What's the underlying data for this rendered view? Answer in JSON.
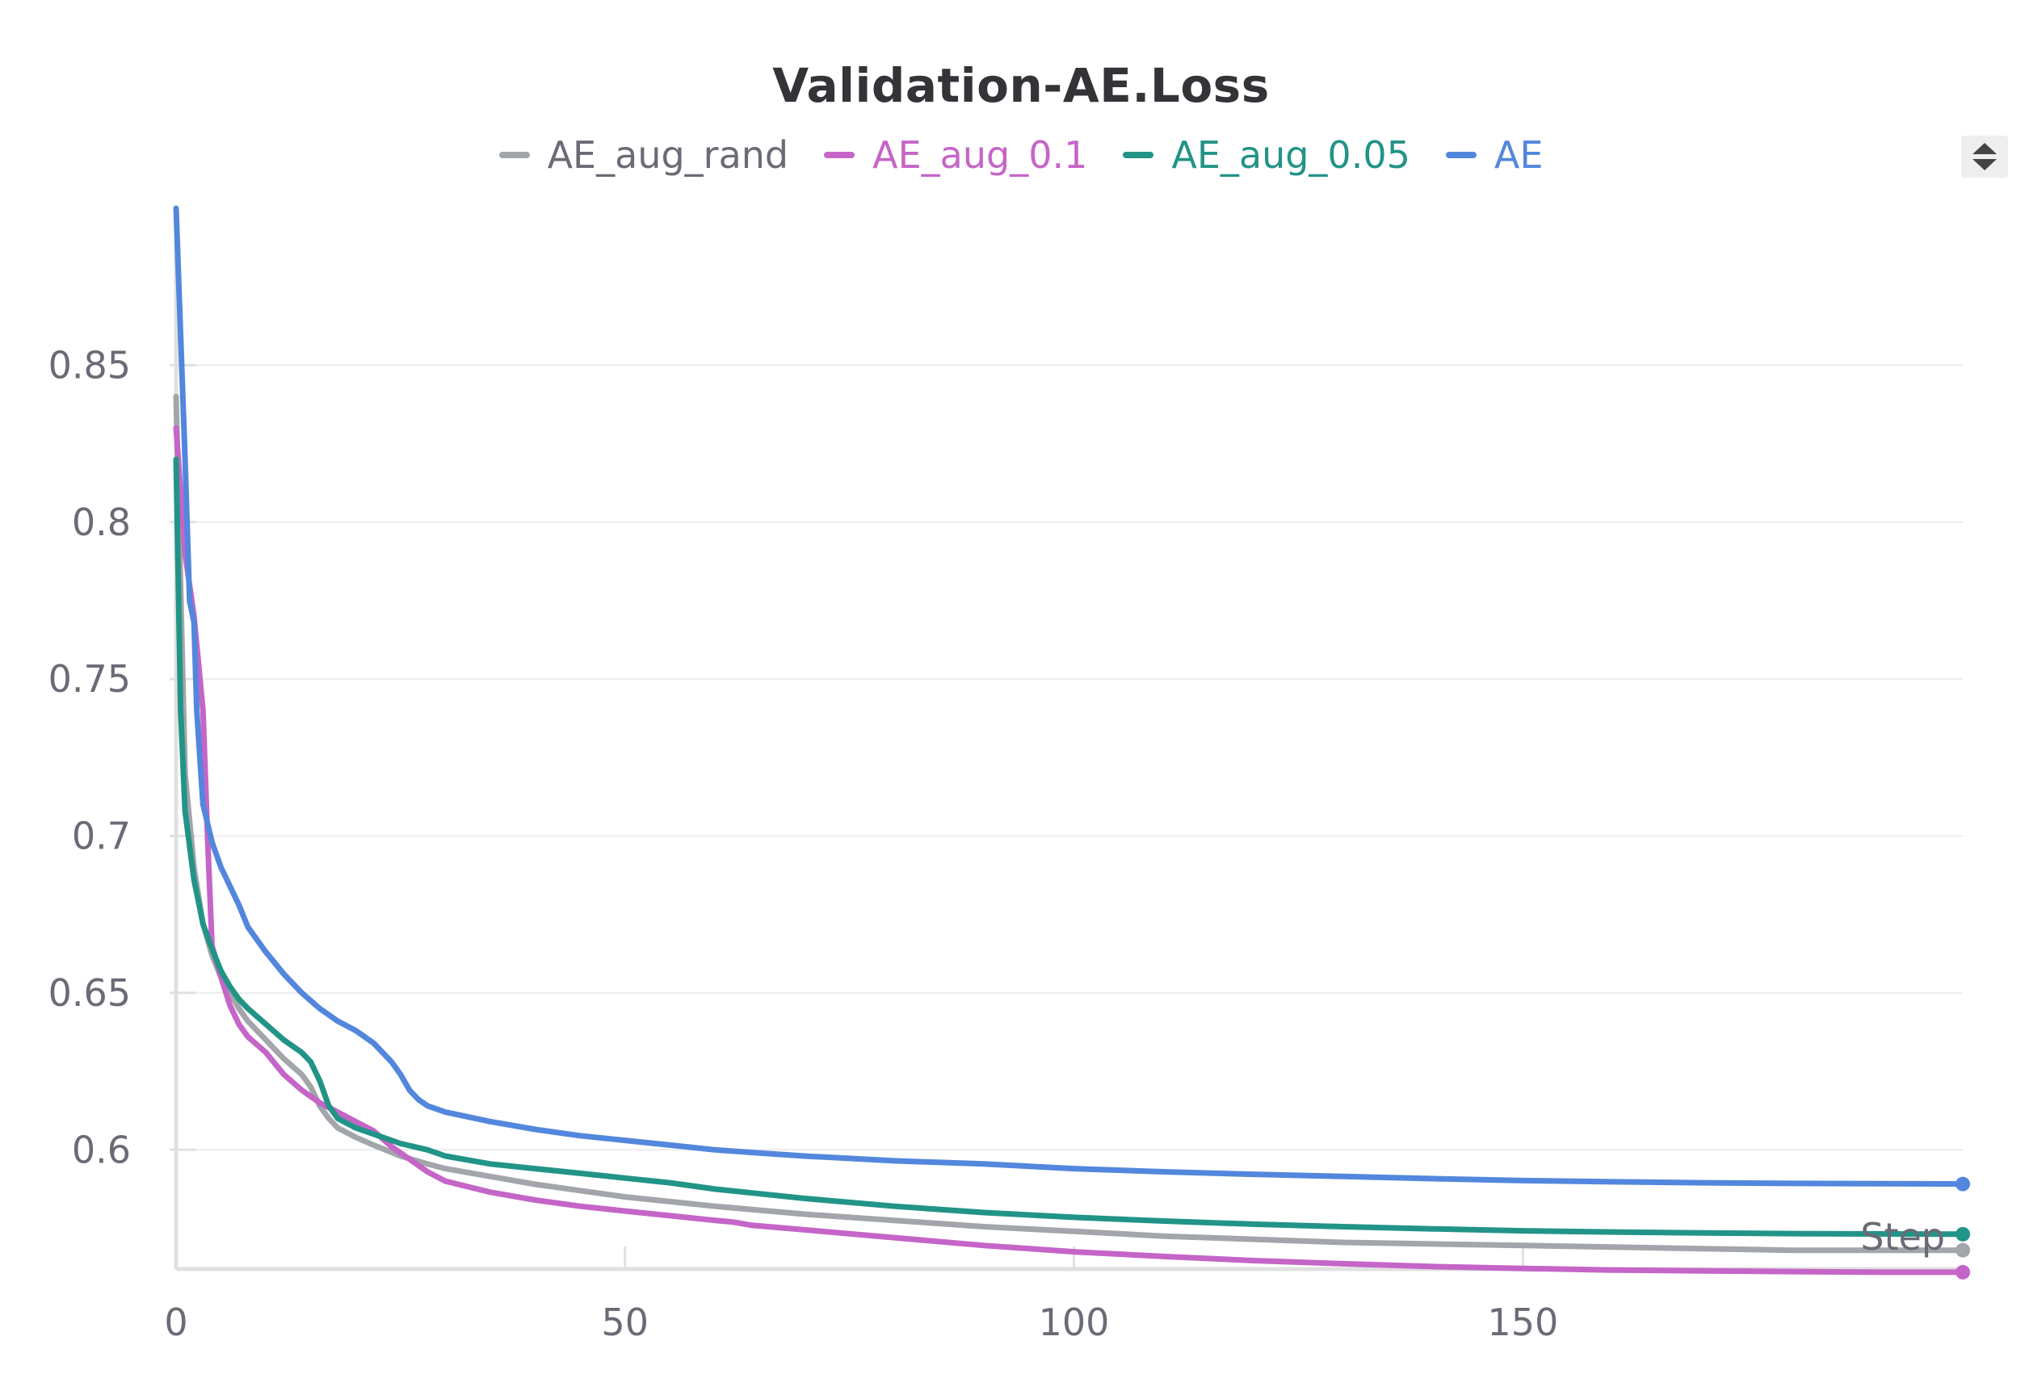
{
  "chart_data": {
    "type": "line",
    "title": "Validation-AE.Loss",
    "xlabel": "Step",
    "ylabel": "",
    "xlim": [
      0,
      199
    ],
    "ylim": [
      0.562,
      0.9
    ],
    "x_ticks": [
      0,
      50,
      100,
      150
    ],
    "y_ticks": [
      0.6,
      0.65,
      0.7,
      0.75,
      0.8,
      0.85
    ],
    "grid": "horizontal",
    "legend_position": "top-center",
    "series": [
      {
        "name": "AE_aug_rand",
        "color": "#a2a5a9",
        "points": [
          [
            0,
            0.84
          ],
          [
            1,
            0.72
          ],
          [
            2,
            0.69
          ],
          [
            3,
            0.672
          ],
          [
            4,
            0.662
          ],
          [
            5,
            0.655
          ],
          [
            6,
            0.65
          ],
          [
            7,
            0.645
          ],
          [
            8,
            0.641
          ],
          [
            10,
            0.635
          ],
          [
            12,
            0.629
          ],
          [
            14,
            0.624
          ],
          [
            15,
            0.62
          ],
          [
            16,
            0.614
          ],
          [
            17,
            0.61
          ],
          [
            18,
            0.607
          ],
          [
            20,
            0.604
          ],
          [
            22,
            0.6015
          ],
          [
            25,
            0.598
          ],
          [
            28,
            0.5955
          ],
          [
            30,
            0.594
          ],
          [
            35,
            0.5915
          ],
          [
            40,
            0.589
          ],
          [
            45,
            0.587
          ],
          [
            50,
            0.585
          ],
          [
            55,
            0.5835
          ],
          [
            60,
            0.582
          ],
          [
            70,
            0.5795
          ],
          [
            80,
            0.5775
          ],
          [
            90,
            0.5755
          ],
          [
            100,
            0.574
          ],
          [
            110,
            0.5725
          ],
          [
            120,
            0.5715
          ],
          [
            130,
            0.5705
          ],
          [
            140,
            0.57
          ],
          [
            150,
            0.5695
          ],
          [
            160,
            0.569
          ],
          [
            170,
            0.5685
          ],
          [
            180,
            0.568
          ],
          [
            190,
            0.568
          ],
          [
            199,
            0.568
          ]
        ]
      },
      {
        "name": "AE_aug_0.1",
        "color": "#c565c7",
        "points": [
          [
            0,
            0.83
          ],
          [
            1,
            0.79
          ],
          [
            2,
            0.77
          ],
          [
            3,
            0.74
          ],
          [
            3.5,
            0.7
          ],
          [
            4,
            0.665
          ],
          [
            5,
            0.655
          ],
          [
            6,
            0.646
          ],
          [
            7,
            0.64
          ],
          [
            8,
            0.636
          ],
          [
            10,
            0.631
          ],
          [
            12,
            0.624
          ],
          [
            14,
            0.619
          ],
          [
            16,
            0.615
          ],
          [
            18,
            0.612
          ],
          [
            20,
            0.609
          ],
          [
            22,
            0.606
          ],
          [
            24,
            0.601
          ],
          [
            26,
            0.597
          ],
          [
            28,
            0.593
          ],
          [
            30,
            0.59
          ],
          [
            35,
            0.5865
          ],
          [
            40,
            0.584
          ],
          [
            45,
            0.582
          ],
          [
            50,
            0.5805
          ],
          [
            55,
            0.579
          ],
          [
            60,
            0.5775
          ],
          [
            62,
            0.577
          ],
          [
            64,
            0.576
          ],
          [
            70,
            0.5745
          ],
          [
            80,
            0.572
          ],
          [
            90,
            0.5695
          ],
          [
            100,
            0.5675
          ],
          [
            110,
            0.566
          ],
          [
            120,
            0.5647
          ],
          [
            130,
            0.5637
          ],
          [
            140,
            0.5628
          ],
          [
            150,
            0.5622
          ],
          [
            160,
            0.5617
          ],
          [
            170,
            0.5614
          ],
          [
            180,
            0.5612
          ],
          [
            190,
            0.561
          ],
          [
            199,
            0.561
          ]
        ]
      },
      {
        "name": "AE_aug_0.05",
        "color": "#229487",
        "points": [
          [
            0,
            0.82
          ],
          [
            0.5,
            0.74
          ],
          [
            1,
            0.708
          ],
          [
            2,
            0.686
          ],
          [
            3,
            0.672
          ],
          [
            4,
            0.664
          ],
          [
            5,
            0.657
          ],
          [
            6,
            0.652
          ],
          [
            7,
            0.648
          ],
          [
            8,
            0.645
          ],
          [
            10,
            0.64
          ],
          [
            12,
            0.635
          ],
          [
            14,
            0.631
          ],
          [
            15,
            0.628
          ],
          [
            16,
            0.622
          ],
          [
            17,
            0.614
          ],
          [
            18,
            0.61
          ],
          [
            20,
            0.607
          ],
          [
            22,
            0.605
          ],
          [
            25,
            0.602
          ],
          [
            28,
            0.6
          ],
          [
            30,
            0.598
          ],
          [
            35,
            0.5955
          ],
          [
            40,
            0.594
          ],
          [
            45,
            0.5925
          ],
          [
            50,
            0.591
          ],
          [
            55,
            0.5895
          ],
          [
            60,
            0.5875
          ],
          [
            65,
            0.586
          ],
          [
            70,
            0.5845
          ],
          [
            80,
            0.582
          ],
          [
            90,
            0.58
          ],
          [
            100,
            0.5785
          ],
          [
            110,
            0.5773
          ],
          [
            120,
            0.5763
          ],
          [
            130,
            0.5755
          ],
          [
            140,
            0.5748
          ],
          [
            150,
            0.5742
          ],
          [
            160,
            0.5738
          ],
          [
            170,
            0.5735
          ],
          [
            180,
            0.5733
          ],
          [
            190,
            0.5732
          ],
          [
            199,
            0.5731
          ]
        ]
      },
      {
        "name": "AE",
        "color": "#5387dd",
        "points": [
          [
            0,
            0.9
          ],
          [
            1,
            0.82
          ],
          [
            1.5,
            0.775
          ],
          [
            2,
            0.768
          ],
          [
            2.3,
            0.74
          ],
          [
            3,
            0.71
          ],
          [
            4,
            0.698
          ],
          [
            5,
            0.69
          ],
          [
            6,
            0.684
          ],
          [
            7,
            0.678
          ],
          [
            8,
            0.671
          ],
          [
            9,
            0.667
          ],
          [
            10,
            0.663
          ],
          [
            12,
            0.656
          ],
          [
            14,
            0.65
          ],
          [
            16,
            0.645
          ],
          [
            18,
            0.641
          ],
          [
            20,
            0.638
          ],
          [
            22,
            0.634
          ],
          [
            24,
            0.628
          ],
          [
            25,
            0.624
          ],
          [
            26,
            0.619
          ],
          [
            27,
            0.616
          ],
          [
            28,
            0.614
          ],
          [
            30,
            0.612
          ],
          [
            35,
            0.609
          ],
          [
            40,
            0.6065
          ],
          [
            45,
            0.6045
          ],
          [
            50,
            0.603
          ],
          [
            55,
            0.6015
          ],
          [
            60,
            0.6
          ],
          [
            65,
            0.599
          ],
          [
            70,
            0.598
          ],
          [
            80,
            0.5965
          ],
          [
            90,
            0.5955
          ],
          [
            100,
            0.594
          ],
          [
            110,
            0.593
          ],
          [
            120,
            0.5922
          ],
          [
            130,
            0.5915
          ],
          [
            140,
            0.5908
          ],
          [
            150,
            0.5902
          ],
          [
            160,
            0.5898
          ],
          [
            170,
            0.5895
          ],
          [
            180,
            0.5893
          ],
          [
            190,
            0.5892
          ],
          [
            199,
            0.5891
          ]
        ]
      }
    ]
  }
}
